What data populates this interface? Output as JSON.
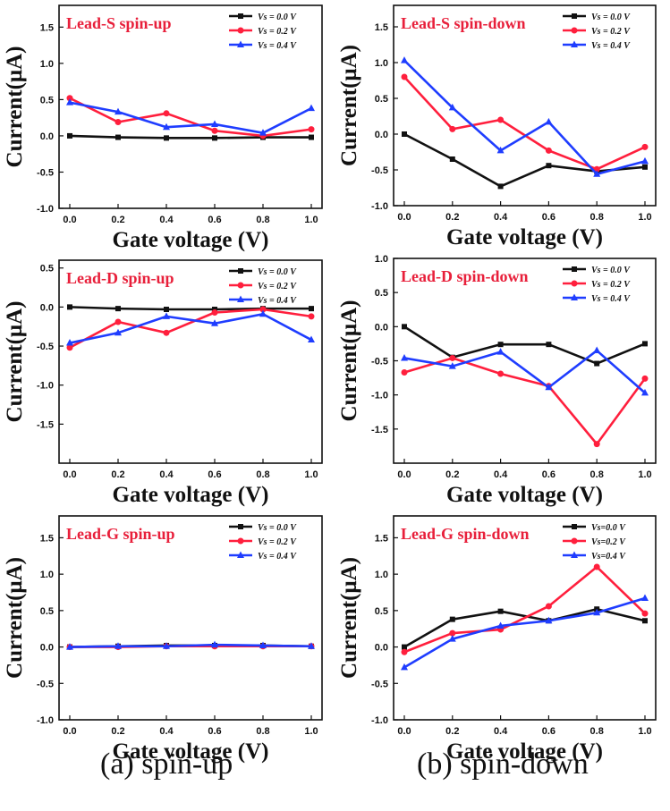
{
  "captions": [
    "(a) spin-up",
    "(b) spin-down"
  ],
  "colors": {
    "s0": "#111111",
    "s1": "#ff1f3d",
    "s2": "#1f3dff",
    "title": "#e8203b"
  },
  "chart_data": [
    {
      "type": "line",
      "title": "Lead-S spin-up",
      "xlabel": "Gate voltage (V)",
      "ylabel": "Current(μA)",
      "x": [
        0.0,
        0.2,
        0.4,
        0.6,
        0.8,
        1.0
      ],
      "xticks": [
        "0.0",
        "0.2",
        "0.4",
        "0.6",
        "0.8",
        "1.0"
      ],
      "ylim": [
        -1.0,
        1.8
      ],
      "yticks": [
        "1.5",
        "1.0",
        "0.5",
        "0.0",
        "-0.5",
        "-1.0"
      ],
      "series": [
        {
          "name": "Vs = 0.0 V",
          "values": [
            0.0,
            -0.02,
            -0.03,
            -0.03,
            -0.02,
            -0.02
          ]
        },
        {
          "name": "Vs = 0.2 V",
          "values": [
            0.52,
            0.19,
            0.31,
            0.07,
            0.0,
            0.09
          ]
        },
        {
          "name": "Vs = 0.4 V",
          "values": [
            0.46,
            0.33,
            0.12,
            0.16,
            0.04,
            0.38
          ]
        }
      ]
    },
    {
      "type": "line",
      "title": "Lead-S spin-down",
      "xlabel": "Gate voltage (V)",
      "ylabel": "Current(μA)",
      "x": [
        0.0,
        0.2,
        0.4,
        0.6,
        0.8,
        1.0
      ],
      "xticks": [
        "0.0",
        "0.2",
        "0.4",
        "0.6",
        "0.8",
        "1.0"
      ],
      "ylim": [
        -1.0,
        1.8
      ],
      "yticks": [
        "1.5",
        "1.0",
        "0.5",
        "0.0",
        "-0.5",
        "-1.0"
      ],
      "series": [
        {
          "name": "Vs = 0.0 V",
          "values": [
            0.0,
            -0.35,
            -0.73,
            -0.44,
            -0.52,
            -0.46
          ]
        },
        {
          "name": "Vs = 0.2 V",
          "values": [
            0.8,
            0.07,
            0.2,
            -0.23,
            -0.49,
            -0.18
          ]
        },
        {
          "name": "Vs = 0.4 V",
          "values": [
            1.03,
            0.37,
            -0.23,
            0.17,
            -0.56,
            -0.38
          ]
        }
      ]
    },
    {
      "type": "line",
      "title": "Lead-D spin-up",
      "xlabel": "Gate voltage (V)",
      "ylabel": "Current(μA)",
      "x": [
        0.0,
        0.2,
        0.4,
        0.6,
        0.8,
        1.0
      ],
      "xticks": [
        "0.0",
        "0.2",
        "0.4",
        "0.6",
        "0.8",
        "1.0"
      ],
      "ylim": [
        -2.0,
        0.6
      ],
      "yticks": [
        "0.5",
        "0.0",
        "-0.5",
        "-1.0",
        "-1.5"
      ],
      "series": [
        {
          "name": "Vs = 0.0 V",
          "values": [
            0.0,
            -0.02,
            -0.03,
            -0.03,
            -0.02,
            -0.02
          ]
        },
        {
          "name": "Vs = 0.2 V",
          "values": [
            -0.52,
            -0.19,
            -0.33,
            -0.07,
            -0.03,
            -0.12
          ]
        },
        {
          "name": "Vs = 0.4 V",
          "values": [
            -0.46,
            -0.33,
            -0.12,
            -0.21,
            -0.09,
            -0.42
          ]
        }
      ]
    },
    {
      "type": "line",
      "title": "Lead-D spin-down",
      "xlabel": "Gate voltage (V)",
      "ylabel": "Current(μA)",
      "x": [
        0.0,
        0.2,
        0.4,
        0.6,
        0.8,
        1.0
      ],
      "xticks": [
        "0.0",
        "0.2",
        "0.4",
        "0.6",
        "0.8",
        "1.0"
      ],
      "ylim": [
        -2.0,
        1.0
      ],
      "yticks": [
        "1.0",
        "0.5",
        "0.0",
        "-0.5",
        "-1.0",
        "-1.5"
      ],
      "series": [
        {
          "name": "Vs = 0.0 V",
          "values": [
            0.0,
            -0.45,
            -0.26,
            -0.26,
            -0.54,
            -0.25
          ]
        },
        {
          "name": "Vs = 0.2 V",
          "values": [
            -0.67,
            -0.46,
            -0.69,
            -0.87,
            -1.72,
            -0.76
          ]
        },
        {
          "name": "Vs = 0.4 V",
          "values": [
            -0.46,
            -0.58,
            -0.37,
            -0.89,
            -0.35,
            -0.97
          ]
        }
      ]
    },
    {
      "type": "line",
      "title": "Lead-G spin-up",
      "xlabel": "Gate voltage (V)",
      "ylabel": "Current(μA)",
      "x": [
        0.0,
        0.2,
        0.4,
        0.6,
        0.8,
        1.0
      ],
      "xticks": [
        "0.0",
        "0.2",
        "0.4",
        "0.6",
        "0.8",
        "1.0"
      ],
      "ylim": [
        -1.0,
        1.8
      ],
      "yticks": [
        "1.5",
        "1.0",
        "0.5",
        "0.0",
        "-0.5",
        "-1.0"
      ],
      "series": [
        {
          "name": "Vs = 0.0 V",
          "values": [
            0.0,
            0.01,
            0.02,
            0.02,
            0.02,
            0.01
          ]
        },
        {
          "name": "Vs = 0.2 V",
          "values": [
            0.0,
            0.0,
            0.01,
            0.01,
            0.01,
            0.01
          ]
        },
        {
          "name": "Vs = 0.4 V",
          "values": [
            0.0,
            0.01,
            0.01,
            0.03,
            0.02,
            0.01
          ]
        }
      ]
    },
    {
      "type": "line",
      "title": "Lead-G spin-down",
      "xlabel": "Gate voltage (V)",
      "ylabel": "Current(μA)",
      "x": [
        0.0,
        0.2,
        0.4,
        0.6,
        0.8,
        1.0
      ],
      "xticks": [
        "0.0",
        "0.2",
        "0.4",
        "0.6",
        "0.8",
        "1.0"
      ],
      "ylim": [
        -1.0,
        1.8
      ],
      "yticks": [
        "1.5",
        "1.0",
        "0.5",
        "0.0",
        "-0.5",
        "-1.0"
      ],
      "series": [
        {
          "name": "Vs=0.0 V",
          "values": [
            0.0,
            0.38,
            0.49,
            0.36,
            0.52,
            0.36
          ]
        },
        {
          "name": "Vs=0.2 V",
          "values": [
            -0.07,
            0.19,
            0.24,
            0.56,
            1.1,
            0.46
          ]
        },
        {
          "name": "Vs=0.4 V",
          "values": [
            -0.28,
            0.11,
            0.29,
            0.36,
            0.47,
            0.67
          ]
        }
      ]
    }
  ]
}
